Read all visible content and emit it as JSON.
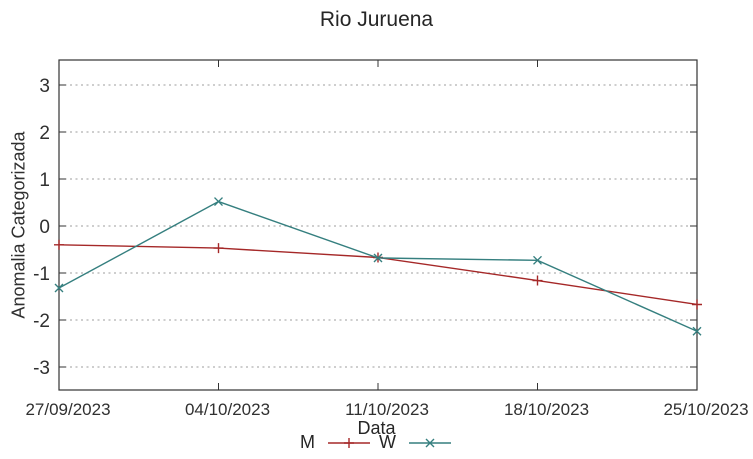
{
  "chart_data": {
    "type": "line",
    "title": "Rio Juruena",
    "xlabel": "Data",
    "ylabel": "Anomalia Categorizada",
    "categories": [
      "27/09/2023",
      "04/10/2023",
      "11/10/2023",
      "18/10/2023",
      "25/10/2023"
    ],
    "yticks": [
      3,
      2,
      1,
      0,
      -1,
      -2,
      -3
    ],
    "ylim": [
      -3.5,
      3.5
    ],
    "grid": "horizontal-dotted",
    "legend_position": "bottom-center",
    "series": [
      {
        "name": "M",
        "marker": "plus",
        "color": "#a52828",
        "values": [
          -0.4,
          -0.47,
          -0.67,
          -1.16,
          -1.67
        ]
      },
      {
        "name": "W",
        "marker": "cross",
        "color": "#357f7f",
        "values": [
          -1.32,
          0.52,
          -0.68,
          -0.73,
          -2.24
        ]
      }
    ]
  }
}
